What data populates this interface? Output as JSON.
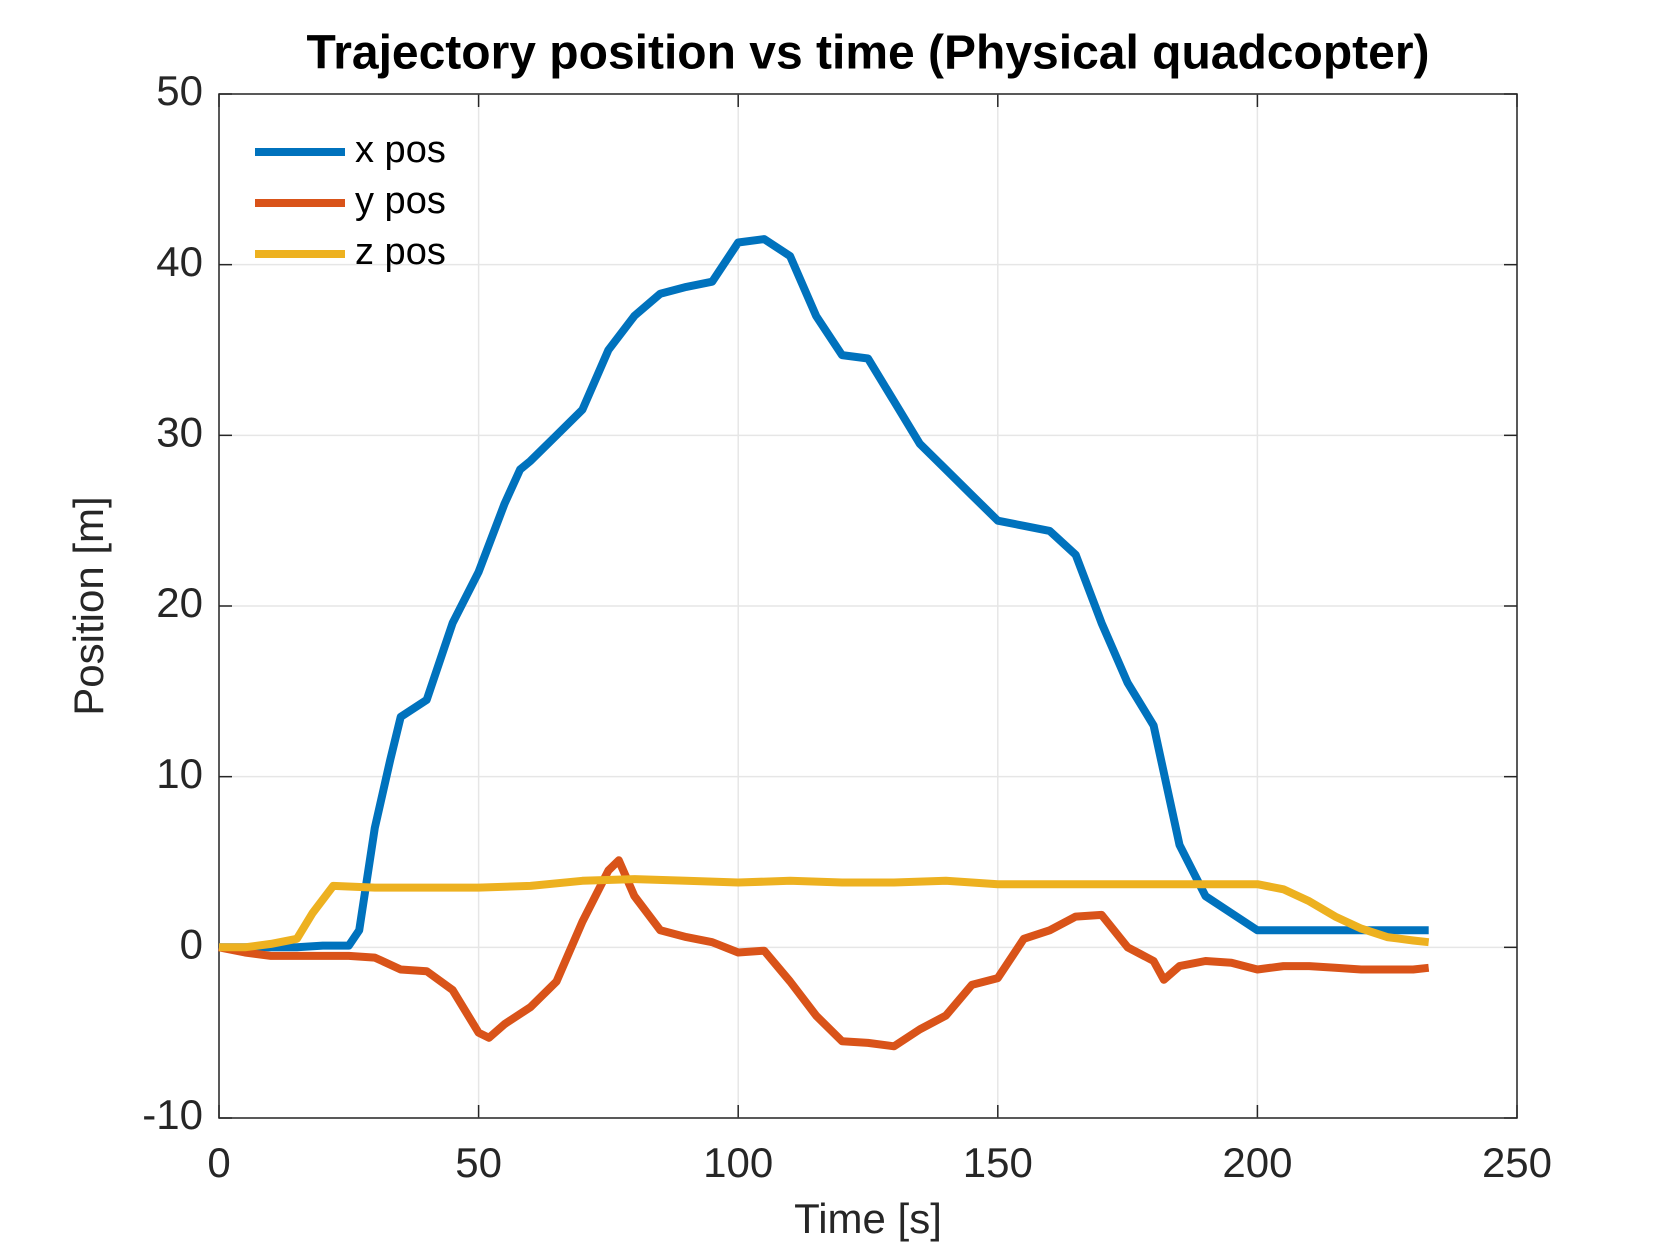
{
  "chart_data": {
    "type": "line",
    "title": "Trajectory position vs time (Physical quadcopter)",
    "xlabel": "Time [s]",
    "ylabel": "Position [m]",
    "xlim": [
      0,
      250
    ],
    "xticks": [
      0,
      50,
      100,
      150,
      200,
      250
    ],
    "ylim": [
      -10,
      50
    ],
    "yticks": [
      -10,
      0,
      10,
      20,
      30,
      40,
      50
    ],
    "grid": true,
    "legend": "upper left",
    "series": [
      {
        "name": "x pos",
        "color": "#0072bd",
        "x": [
          0,
          5,
          10,
          15,
          20,
          25,
          27,
          30,
          33,
          35,
          40,
          45,
          50,
          55,
          58,
          60,
          65,
          70,
          75,
          80,
          85,
          90,
          95,
          100,
          105,
          110,
          115,
          120,
          125,
          130,
          135,
          140,
          145,
          150,
          155,
          160,
          165,
          170,
          175,
          180,
          185,
          190,
          195,
          200,
          205,
          210,
          215,
          220,
          225,
          230,
          233
        ],
        "values": [
          0,
          0,
          0,
          0,
          0.1,
          0.1,
          1,
          7,
          11,
          13.5,
          14.5,
          19,
          22,
          26,
          28,
          28.5,
          30,
          31.5,
          35,
          37,
          38.3,
          38.7,
          39,
          41.3,
          41.5,
          40.5,
          37,
          34.7,
          34.5,
          32,
          29.5,
          28,
          26.5,
          25,
          24.7,
          24.4,
          23,
          19,
          15.5,
          13,
          6,
          3,
          2,
          1,
          1,
          1,
          1,
          1,
          1,
          1,
          1
        ]
      },
      {
        "name": "y pos",
        "color": "#d95319",
        "x": [
          0,
          5,
          10,
          15,
          20,
          25,
          30,
          35,
          40,
          45,
          50,
          52,
          55,
          60,
          65,
          70,
          75,
          77,
          80,
          85,
          90,
          95,
          100,
          105,
          110,
          115,
          120,
          125,
          130,
          135,
          140,
          145,
          150,
          155,
          160,
          165,
          170,
          175,
          180,
          182,
          185,
          190,
          195,
          200,
          205,
          210,
          215,
          220,
          225,
          230,
          233
        ],
        "values": [
          0,
          -0.3,
          -0.5,
          -0.5,
          -0.5,
          -0.5,
          -0.6,
          -1.3,
          -1.4,
          -2.5,
          -5,
          -5.3,
          -4.5,
          -3.5,
          -2,
          1.5,
          4.5,
          5.1,
          3,
          1,
          0.6,
          0.3,
          -0.3,
          -0.2,
          -2,
          -4,
          -5.5,
          -5.6,
          -5.8,
          -4.8,
          -4,
          -2.2,
          -1.8,
          0.5,
          1,
          1.8,
          1.9,
          0,
          -0.8,
          -1.9,
          -1.1,
          -0.8,
          -0.9,
          -1.3,
          -1.1,
          -1.1,
          -1.2,
          -1.3,
          -1.3,
          -1.3,
          -1.2
        ]
      },
      {
        "name": "z pos",
        "color": "#edb120",
        "x": [
          0,
          5,
          10,
          15,
          18,
          22,
          30,
          40,
          50,
          60,
          70,
          80,
          90,
          100,
          110,
          120,
          130,
          140,
          150,
          160,
          170,
          180,
          190,
          200,
          205,
          210,
          215,
          220,
          225,
          230,
          233
        ],
        "values": [
          0,
          0,
          0.2,
          0.5,
          2,
          3.6,
          3.5,
          3.5,
          3.5,
          3.6,
          3.9,
          4,
          3.9,
          3.8,
          3.9,
          3.8,
          3.8,
          3.9,
          3.7,
          3.7,
          3.7,
          3.7,
          3.7,
          3.7,
          3.4,
          2.7,
          1.8,
          1.1,
          0.6,
          0.4,
          0.3
        ]
      }
    ]
  }
}
